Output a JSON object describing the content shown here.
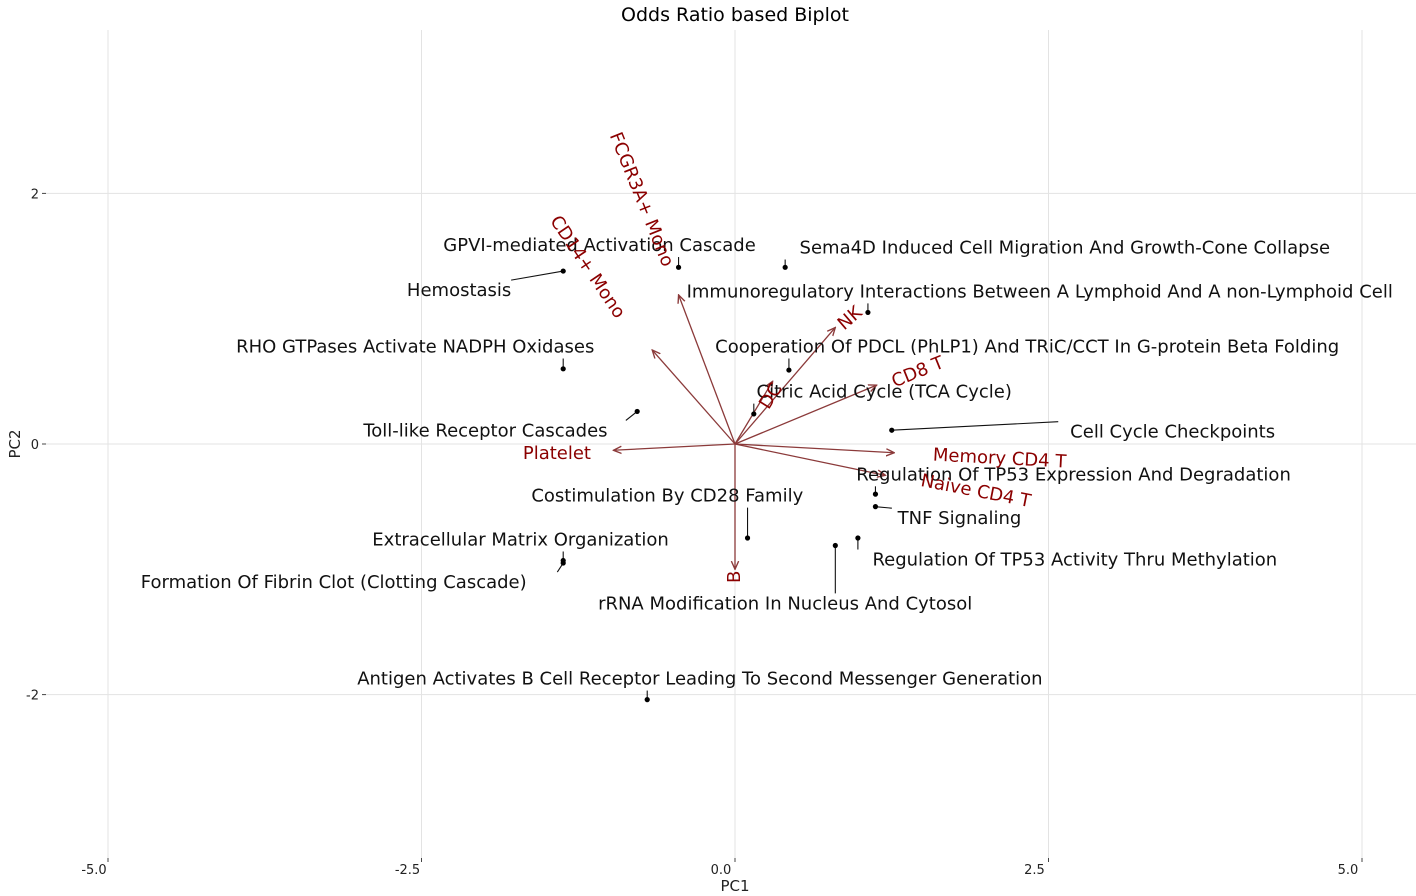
{
  "chart_data": {
    "type": "scatter",
    "title": "Odds Ratio based Biplot",
    "xlabel": "PC1",
    "ylabel": "PC2",
    "xlim": [
      -5,
      5
    ],
    "ylim": [
      -3.3,
      3.3
    ],
    "grid": true,
    "x_ticks": [
      {
        "value": -5,
        "label": "-5.0"
      },
      {
        "value": -2.5,
        "label": "-2.5"
      },
      {
        "value": 0,
        "label": "0.0"
      },
      {
        "value": 2.5,
        "label": "2.5"
      },
      {
        "value": 5,
        "label": "5.0"
      }
    ],
    "y_ticks": [
      {
        "value": 2,
        "label": "2"
      },
      {
        "value": 0,
        "label": "0"
      },
      {
        "value": -2,
        "label": "-2"
      }
    ],
    "points": [
      {
        "x": -0.45,
        "y": 1.41,
        "label": "GPVI-mediated Activation Cascade",
        "lx": -1.08,
        "ly": 1.58
      },
      {
        "x": 0.4,
        "y": 1.41,
        "label": "Sema4D Induced Cell Migration And Growth-Cone Collapse",
        "lx": 2.63,
        "ly": 1.56
      },
      {
        "x": -1.37,
        "y": 1.38,
        "label": "Hemostasis",
        "lx": -2.2,
        "ly": 1.22
      },
      {
        "x": 1.06,
        "y": 1.05,
        "label": "Immunoregulatory Interactions Between A Lymphoid And A non-Lymphoid Cell",
        "lx": 2.43,
        "ly": 1.21
      },
      {
        "x": -1.37,
        "y": 0.6,
        "label": "RHO GTPases Activate NADPH Oxidases",
        "lx": -2.55,
        "ly": 0.77
      },
      {
        "x": 0.43,
        "y": 0.59,
        "label": "Cooperation Of PDCL (PhLP1) And TRiC/CCT In G-protein Beta Folding",
        "lx": 2.33,
        "ly": 0.77
      },
      {
        "x": 0.15,
        "y": 0.24,
        "label": "Citric Acid Cycle (TCA Cycle)",
        "lx": 1.19,
        "ly": 0.41
      },
      {
        "x": -0.78,
        "y": 0.26,
        "label": "Toll-like Receptor Cascades",
        "lx": -1.99,
        "ly": 0.1
      },
      {
        "x": 1.25,
        "y": 0.11,
        "label": "Cell Cycle Checkpoints",
        "lx": 3.49,
        "ly": 0.09
      },
      {
        "x": 1.12,
        "y": -0.4,
        "label": "Regulation Of TP53 Expression And Degradation",
        "lx": 2.7,
        "ly": -0.25
      },
      {
        "x": 1.12,
        "y": -0.5,
        "label": "TNF Signaling",
        "lx": 1.79,
        "ly": -0.6
      },
      {
        "x": 0.1,
        "y": -0.75,
        "label": "Costimulation By CD28 Family",
        "lx": -0.54,
        "ly": -0.42
      },
      {
        "x": 0.98,
        "y": -0.75,
        "label": "Regulation Of TP53 Activity Thru Methylation",
        "lx": 2.71,
        "ly": -0.93
      },
      {
        "x": 0.8,
        "y": -0.81,
        "label": "rRNA Modification In Nucleus And Cytosol",
        "lx": 0.4,
        "ly": -1.28
      },
      {
        "x": -1.37,
        "y": -0.93,
        "label": "Extracellular Matrix Organization",
        "lx": -1.71,
        "ly": -0.77
      },
      {
        "x": -1.37,
        "y": -0.95,
        "label": "Formation Of Fibrin Clot (Clotting Cascade)",
        "lx": -3.2,
        "ly": -1.11
      },
      {
        "x": -0.7,
        "y": -2.04,
        "label": "Antigen Activates B Cell Receptor Leading To Second Messenger Generation",
        "lx": -0.28,
        "ly": -1.88
      }
    ],
    "loadings": [
      {
        "name": "FCGR3A+ Mono",
        "x": -0.45,
        "y": 1.19,
        "lx": -0.75,
        "ly": 1.95,
        "rot": 68
      },
      {
        "name": "CD14+ Mono",
        "x": -0.66,
        "y": 0.75,
        "lx": -1.18,
        "ly": 1.41,
        "rot": 56
      },
      {
        "name": "NK",
        "x": 0.8,
        "y": 0.93,
        "lx": 0.92,
        "ly": 1.0,
        "rot": -41
      },
      {
        "name": "CD8 T",
        "x": 1.13,
        "y": 0.47,
        "lx": 1.46,
        "ly": 0.57,
        "rot": -22
      },
      {
        "name": "DC",
        "x": 0.3,
        "y": 0.5,
        "lx": 0.29,
        "ly": 0.38,
        "rot": -58
      },
      {
        "name": "Memory CD4 T",
        "x": 1.27,
        "y": -0.07,
        "lx": 2.11,
        "ly": -0.12,
        "rot": 3
      },
      {
        "name": "Naive CD4 T",
        "x": 1.2,
        "y": -0.25,
        "lx": 1.92,
        "ly": -0.38,
        "rot": 11
      },
      {
        "name": "Platelet",
        "x": -0.97,
        "y": -0.05,
        "lx": -1.42,
        "ly": -0.08,
        "rot": 0
      },
      {
        "name": "B",
        "x": 0.0,
        "y": -1.0,
        "lx": 0.0,
        "ly": -1.06,
        "rot": -90
      }
    ]
  }
}
